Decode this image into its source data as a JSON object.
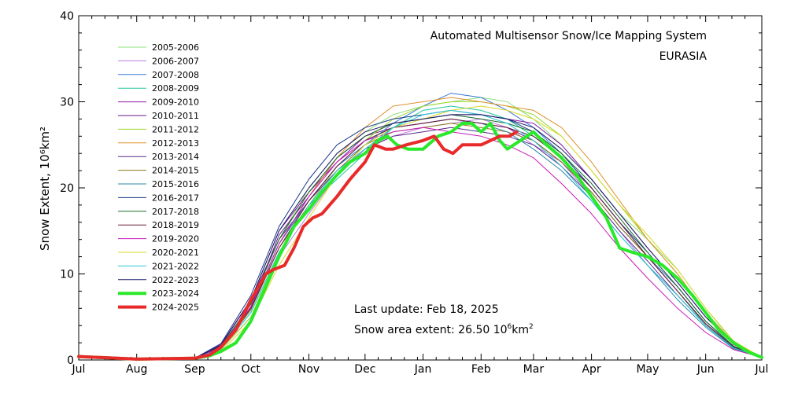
{
  "chart_data": {
    "type": "line",
    "title": "Automated  Multisensor Snow/Ice Mapping System",
    "subtitle": "EURASIA",
    "ylabel": "Snow Extent, 10⁶km²",
    "xlabel": "",
    "ylim": [
      0,
      40
    ],
    "yticks": [
      0,
      10,
      20,
      30,
      40
    ],
    "xlim": [
      0,
      365
    ],
    "x_ticks": [
      {
        "day": 0,
        "label": "Jul"
      },
      {
        "day": 31,
        "label": "Aug"
      },
      {
        "day": 62,
        "label": "Sep"
      },
      {
        "day": 92,
        "label": "Oct"
      },
      {
        "day": 123,
        "label": "Nov"
      },
      {
        "day": 153,
        "label": "Dec"
      },
      {
        "day": 184,
        "label": "Jan"
      },
      {
        "day": 215,
        "label": "Feb"
      },
      {
        "day": 243,
        "label": "Mar"
      },
      {
        "day": 274,
        "label": "Apr"
      },
      {
        "day": 304,
        "label": "May"
      },
      {
        "day": 335,
        "label": "Jun"
      },
      {
        "day": 365,
        "label": "Jul"
      }
    ],
    "legend_position": "top-left",
    "series": [
      {
        "name": "2005-2006",
        "color": "#8ee07a",
        "width": 1,
        "x": [
          0,
          31,
          62,
          76,
          92,
          107,
          123,
          138,
          153,
          168,
          184,
          199,
          215,
          229,
          243,
          258,
          274,
          289,
          304,
          320,
          335,
          350,
          365
        ],
        "y": [
          0.3,
          0.1,
          0.2,
          1.5,
          6.5,
          14.0,
          20.0,
          24.0,
          26.5,
          28.5,
          29.5,
          30.0,
          30.5,
          30.0,
          28.0,
          25.0,
          21.0,
          17.0,
          14.0,
          10.5,
          6.0,
          2.0,
          0.3
        ]
      },
      {
        "name": "2006-2007",
        "color": "#b77adf",
        "width": 1,
        "x": [
          0,
          31,
          62,
          76,
          92,
          107,
          123,
          138,
          153,
          168,
          184,
          199,
          215,
          229,
          243,
          258,
          274,
          289,
          304,
          320,
          335,
          350,
          365
        ],
        "y": [
          0.3,
          0.1,
          0.2,
          1.2,
          5.0,
          12.0,
          17.0,
          21.5,
          24.5,
          26.0,
          27.0,
          27.5,
          28.0,
          27.0,
          25.0,
          23.0,
          19.0,
          15.0,
          11.0,
          7.5,
          4.0,
          1.5,
          0.3
        ]
      },
      {
        "name": "2007-2008",
        "color": "#3a78d8",
        "width": 1,
        "x": [
          0,
          31,
          62,
          76,
          92,
          107,
          123,
          138,
          153,
          168,
          184,
          199,
          215,
          229,
          243,
          258,
          274,
          289,
          304,
          320,
          335,
          350,
          365
        ],
        "y": [
          0.3,
          0.1,
          0.2,
          1.6,
          6.0,
          13.5,
          18.5,
          22.5,
          25.0,
          27.5,
          29.5,
          31.0,
          30.5,
          29.0,
          27.0,
          24.0,
          20.0,
          16.0,
          12.0,
          8.5,
          4.5,
          1.5,
          0.3
        ]
      },
      {
        "name": "2008-2009",
        "color": "#1ec9a0",
        "width": 1,
        "x": [
          0,
          31,
          62,
          76,
          92,
          107,
          123,
          138,
          153,
          168,
          184,
          199,
          215,
          229,
          243,
          258,
          274,
          289,
          304,
          320,
          335,
          350,
          365
        ],
        "y": [
          0.3,
          0.1,
          0.2,
          1.3,
          5.5,
          12.5,
          18.0,
          21.0,
          24.0,
          27.0,
          29.0,
          29.5,
          29.0,
          28.0,
          26.0,
          23.5,
          20.0,
          16.0,
          12.0,
          8.0,
          4.0,
          1.4,
          0.3
        ]
      },
      {
        "name": "2009-2010",
        "color": "#8a1aa8",
        "width": 1,
        "x": [
          0,
          31,
          62,
          76,
          92,
          107,
          123,
          138,
          153,
          168,
          184,
          199,
          215,
          229,
          243,
          258,
          274,
          289,
          304,
          320,
          335,
          350,
          365
        ],
        "y": [
          0.3,
          0.1,
          0.2,
          1.8,
          7.0,
          15.0,
          19.5,
          23.0,
          26.0,
          27.5,
          28.0,
          28.5,
          28.5,
          28.0,
          27.5,
          25.0,
          21.0,
          17.0,
          13.0,
          9.0,
          5.0,
          1.8,
          0.3
        ]
      },
      {
        "name": "2010-2011",
        "color": "#6a1a8a",
        "width": 1,
        "x": [
          0,
          31,
          62,
          76,
          92,
          107,
          123,
          138,
          153,
          168,
          184,
          199,
          215,
          229,
          243,
          258,
          274,
          289,
          304,
          320,
          335,
          350,
          365
        ],
        "y": [
          0.3,
          0.1,
          0.2,
          1.5,
          6.2,
          14.5,
          19.0,
          23.5,
          26.0,
          27.0,
          27.5,
          28.0,
          27.5,
          27.0,
          25.5,
          23.0,
          19.5,
          15.5,
          12.0,
          8.0,
          4.2,
          1.5,
          0.3
        ]
      },
      {
        "name": "2011-2012",
        "color": "#9ad82a",
        "width": 1,
        "x": [
          0,
          31,
          62,
          76,
          92,
          107,
          123,
          138,
          153,
          168,
          184,
          199,
          215,
          229,
          243,
          258,
          274,
          289,
          304,
          320,
          335,
          350,
          365
        ],
        "y": [
          0.3,
          0.1,
          0.2,
          1.2,
          5.0,
          12.5,
          18.0,
          22.5,
          25.5,
          28.0,
          29.5,
          30.0,
          30.0,
          29.5,
          28.5,
          26.0,
          22.0,
          18.0,
          14.0,
          10.0,
          5.5,
          2.0,
          0.3
        ]
      },
      {
        "name": "2012-2013",
        "color": "#e0902a",
        "width": 1,
        "x": [
          0,
          31,
          62,
          76,
          92,
          107,
          123,
          138,
          153,
          168,
          184,
          199,
          215,
          229,
          243,
          258,
          274,
          289,
          304,
          320,
          335,
          350,
          365
        ],
        "y": [
          0.3,
          0.1,
          0.2,
          1.4,
          6.0,
          13.5,
          19.0,
          23.5,
          27.0,
          29.5,
          30.0,
          30.5,
          30.0,
          29.5,
          29.0,
          27.0,
          23.0,
          18.5,
          14.0,
          10.0,
          5.5,
          2.0,
          0.3
        ]
      },
      {
        "name": "2013-2014",
        "color": "#5a2a8a",
        "width": 1,
        "x": [
          0,
          31,
          62,
          76,
          92,
          107,
          123,
          138,
          153,
          168,
          184,
          199,
          215,
          229,
          243,
          258,
          274,
          289,
          304,
          320,
          335,
          350,
          365
        ],
        "y": [
          0.3,
          0.1,
          0.2,
          1.7,
          7.0,
          14.0,
          18.5,
          22.0,
          24.5,
          26.0,
          26.5,
          27.0,
          26.5,
          26.0,
          25.0,
          22.5,
          19.0,
          15.0,
          11.5,
          7.5,
          4.0,
          1.4,
          0.3
        ]
      },
      {
        "name": "2014-2015",
        "color": "#8a7a1a",
        "width": 1,
        "x": [
          0,
          31,
          62,
          76,
          92,
          107,
          123,
          138,
          153,
          168,
          184,
          199,
          215,
          229,
          243,
          258,
          274,
          289,
          304,
          320,
          335,
          350,
          365
        ],
        "y": [
          0.3,
          0.1,
          0.2,
          1.3,
          5.8,
          13.0,
          18.0,
          22.0,
          25.0,
          26.5,
          27.0,
          27.5,
          27.0,
          26.5,
          25.5,
          23.0,
          19.5,
          15.5,
          12.0,
          8.0,
          4.2,
          1.5,
          0.3
        ]
      },
      {
        "name": "2015-2016",
        "color": "#2a8aa8",
        "width": 1,
        "x": [
          0,
          31,
          62,
          76,
          92,
          107,
          123,
          138,
          153,
          168,
          184,
          199,
          215,
          229,
          243,
          258,
          274,
          289,
          304,
          320,
          335,
          350,
          365
        ],
        "y": [
          0.3,
          0.1,
          0.2,
          1.5,
          6.0,
          13.5,
          18.5,
          22.5,
          25.5,
          27.0,
          27.5,
          28.0,
          27.5,
          26.5,
          24.5,
          22.0,
          18.5,
          14.5,
          11.0,
          7.0,
          3.8,
          1.3,
          0.3
        ]
      },
      {
        "name": "2016-2017",
        "color": "#1a3a8a",
        "width": 1,
        "x": [
          0,
          31,
          62,
          76,
          92,
          107,
          123,
          138,
          153,
          168,
          184,
          199,
          215,
          229,
          243,
          258,
          274,
          289,
          304,
          320,
          335,
          350,
          365
        ],
        "y": [
          0.3,
          0.1,
          0.2,
          1.9,
          7.5,
          15.5,
          21.0,
          25.0,
          27.0,
          28.0,
          28.5,
          29.0,
          28.5,
          28.0,
          26.5,
          24.0,
          20.0,
          16.0,
          12.5,
          8.5,
          4.5,
          1.6,
          0.3
        ]
      },
      {
        "name": "2017-2018",
        "color": "#1a6a2a",
        "width": 1,
        "x": [
          0,
          31,
          62,
          76,
          92,
          107,
          123,
          138,
          153,
          168,
          184,
          199,
          215,
          229,
          243,
          258,
          274,
          289,
          304,
          320,
          335,
          350,
          365
        ],
        "y": [
          0.3,
          0.1,
          0.2,
          1.6,
          6.5,
          14.0,
          19.5,
          23.5,
          26.0,
          27.5,
          28.0,
          28.5,
          28.0,
          27.5,
          26.5,
          24.0,
          20.5,
          16.5,
          12.5,
          8.5,
          4.5,
          1.6,
          0.3
        ]
      },
      {
        "name": "2018-2019",
        "color": "#6a1a3a",
        "width": 1,
        "x": [
          0,
          31,
          62,
          76,
          92,
          107,
          123,
          138,
          153,
          168,
          184,
          199,
          215,
          229,
          243,
          258,
          274,
          289,
          304,
          320,
          335,
          350,
          365
        ],
        "y": [
          0.3,
          0.1,
          0.2,
          1.4,
          6.0,
          13.0,
          18.5,
          22.5,
          25.5,
          27.0,
          27.5,
          28.0,
          27.5,
          27.0,
          26.0,
          23.5,
          20.0,
          16.0,
          12.0,
          8.0,
          4.2,
          1.5,
          0.3
        ]
      },
      {
        "name": "2019-2020",
        "color": "#c81ab8",
        "width": 1,
        "x": [
          0,
          31,
          62,
          76,
          92,
          107,
          123,
          138,
          153,
          168,
          184,
          199,
          215,
          229,
          243,
          258,
          274,
          289,
          304,
          320,
          335,
          350,
          365
        ],
        "y": [
          0.3,
          0.1,
          0.2,
          1.5,
          6.2,
          13.5,
          19.0,
          23.0,
          25.5,
          26.5,
          27.0,
          26.5,
          26.0,
          25.0,
          23.5,
          20.5,
          17.0,
          13.0,
          9.5,
          6.0,
          3.2,
          1.2,
          0.3
        ]
      },
      {
        "name": "2020-2021",
        "color": "#d8d82a",
        "width": 1,
        "x": [
          0,
          31,
          62,
          76,
          92,
          107,
          123,
          138,
          153,
          168,
          184,
          199,
          215,
          229,
          243,
          258,
          274,
          289,
          304,
          320,
          335,
          350,
          365
        ],
        "y": [
          0.3,
          0.1,
          0.2,
          1.0,
          4.5,
          11.0,
          16.5,
          21.5,
          25.0,
          27.0,
          28.0,
          29.0,
          29.5,
          29.0,
          28.0,
          26.0,
          22.0,
          18.0,
          14.5,
          10.5,
          6.0,
          2.2,
          0.3
        ]
      },
      {
        "name": "2021-2022",
        "color": "#2ac8d8",
        "width": 1,
        "x": [
          0,
          31,
          62,
          76,
          92,
          107,
          123,
          138,
          153,
          168,
          184,
          199,
          215,
          229,
          243,
          258,
          274,
          289,
          304,
          320,
          335,
          350,
          365
        ],
        "y": [
          0.3,
          0.1,
          0.2,
          1.3,
          5.5,
          12.5,
          18.0,
          22.0,
          24.5,
          27.0,
          28.5,
          29.0,
          28.5,
          27.5,
          25.5,
          22.5,
          18.5,
          14.5,
          11.0,
          7.5,
          4.0,
          1.4,
          0.3
        ]
      },
      {
        "name": "2022-2023",
        "color": "#1a1a6a",
        "width": 1,
        "x": [
          0,
          31,
          62,
          76,
          92,
          107,
          123,
          138,
          153,
          168,
          184,
          199,
          215,
          229,
          243,
          258,
          274,
          289,
          304,
          320,
          335,
          350,
          365
        ],
        "y": [
          0.3,
          0.1,
          0.2,
          1.7,
          7.0,
          15.0,
          20.0,
          24.0,
          26.5,
          27.5,
          28.0,
          28.5,
          28.5,
          28.0,
          27.0,
          24.5,
          21.0,
          17.0,
          13.0,
          9.0,
          5.0,
          1.8,
          0.3
        ]
      },
      {
        "name": "2023-2024",
        "color": "#2ae82a",
        "width": 4,
        "x": [
          0,
          31,
          62,
          70,
          76,
          84,
          92,
          100,
          107,
          115,
          123,
          130,
          138,
          145,
          153,
          160,
          165,
          170,
          176,
          184,
          192,
          199,
          205,
          210,
          215,
          220,
          225,
          229,
          236,
          243,
          250,
          258,
          266,
          274,
          282,
          289,
          296,
          304,
          312,
          320,
          328,
          335,
          342,
          350,
          358,
          365
        ],
        "y": [
          0.4,
          0.1,
          0.2,
          0.5,
          1.0,
          2.0,
          4.5,
          8.5,
          12.0,
          15.5,
          17.5,
          19.5,
          21.5,
          23.0,
          24.0,
          25.5,
          26.0,
          25.0,
          24.5,
          24.5,
          26.0,
          26.5,
          27.5,
          27.5,
          26.5,
          27.5,
          25.5,
          24.5,
          25.5,
          26.5,
          25.0,
          23.5,
          21.5,
          19.0,
          16.5,
          13.0,
          12.5,
          12.0,
          11.0,
          9.5,
          7.5,
          5.5,
          3.5,
          2.0,
          0.9,
          0.3
        ]
      },
      {
        "name": "2024-2025",
        "color": "#e82a2a",
        "width": 4,
        "x": [
          0,
          31,
          62,
          70,
          76,
          84,
          92,
          100,
          104,
          110,
          115,
          120,
          125,
          130,
          138,
          145,
          153,
          158,
          164,
          168,
          175,
          184,
          190,
          195,
          200,
          205,
          210,
          215,
          220,
          225,
          230,
          234
        ],
        "y": [
          0.4,
          0.1,
          0.2,
          0.6,
          1.5,
          3.5,
          7.0,
          10.0,
          10.5,
          11.0,
          13.0,
          15.5,
          16.5,
          17.0,
          19.0,
          21.0,
          23.0,
          25.0,
          24.5,
          24.5,
          25.0,
          25.5,
          26.0,
          24.5,
          24.0,
          25.0,
          25.0,
          25.0,
          25.5,
          26.0,
          26.0,
          26.5
        ]
      }
    ]
  },
  "info": {
    "last_update": "Last update: Feb 18, 2025",
    "snow_area_prefix": "Snow area extent: 26.50 10",
    "snow_area_sup": "6",
    "snow_area_unit": "km",
    "snow_area_unit_sup": "2"
  }
}
